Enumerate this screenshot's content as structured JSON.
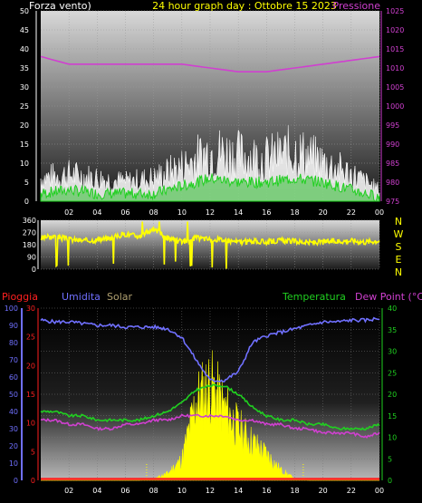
{
  "colors": {
    "background": "#000000",
    "wind": "#ffffff",
    "pressure": "#d040d0",
    "direction": "#ffff00",
    "rain": "#ff2020",
    "humidity": "#7070ff",
    "solar": "#ffff00",
    "temperature": "#20d020",
    "dewpoint": "#d040d0",
    "header_title": "#ffff00",
    "grid": "#888888"
  },
  "chart_data": [
    {
      "type": "line",
      "panel": "wind-pressure",
      "title": "24 hour graph day : Ottobre 15 2023",
      "left_label": "Forza vento)",
      "right_label": "Pressione",
      "x_ticks": [
        "02",
        "04",
        "06",
        "08",
        "10",
        "12",
        "14",
        "16",
        "18",
        "20",
        "22",
        "00"
      ],
      "y_left_ticks": [
        0,
        5,
        10,
        15,
        20,
        25,
        30,
        35,
        40,
        45,
        50
      ],
      "y_right_ticks": [
        975,
        980,
        985,
        990,
        995,
        1000,
        1005,
        1010,
        1015,
        1020,
        1025
      ],
      "ylim_left": [
        0,
        50
      ],
      "ylim_right": [
        975,
        1025
      ],
      "x_hours": [
        0,
        2,
        4,
        6,
        8,
        10,
        12,
        14,
        16,
        18,
        20,
        22,
        24
      ],
      "gust_kmh": [
        6,
        7,
        6,
        5,
        6,
        9,
        13,
        12,
        11,
        13,
        10,
        7,
        3
      ],
      "wind_kmh": [
        2,
        3,
        2,
        2,
        2,
        4,
        6,
        5,
        5,
        6,
        5,
        3,
        1
      ],
      "pressure_hpa": [
        1013,
        1011,
        1011,
        1011,
        1011,
        1011,
        1010,
        1009,
        1009,
        1010,
        1011,
        1012,
        1013
      ]
    },
    {
      "type": "line",
      "panel": "wind-direction",
      "y_left_ticks": [
        0,
        90,
        180,
        270,
        360
      ],
      "right_labels": [
        "N",
        "W",
        "S",
        "E",
        "N"
      ],
      "ylim": [
        0,
        360
      ],
      "x_hours": [
        0,
        1,
        2,
        3,
        4,
        5,
        6,
        7,
        8,
        9,
        10,
        11,
        12,
        13,
        14,
        15,
        16,
        17,
        18,
        19,
        20,
        21,
        22,
        23,
        24
      ],
      "direction_deg": [
        230,
        240,
        220,
        210,
        215,
        230,
        260,
        240,
        300,
        230,
        200,
        230,
        220,
        215,
        200,
        205,
        200,
        210,
        205,
        195,
        200,
        205,
        210,
        200,
        210
      ]
    },
    {
      "type": "line",
      "panel": "rain-hum-solar-temp",
      "labels": {
        "rain": "Pioggia",
        "humidity": "Umidita",
        "solar": "Solar",
        "temperature": "Temperatura",
        "dewpoint": "Dew Point (°C)"
      },
      "y_humidity_ticks": [
        0,
        10,
        20,
        30,
        40,
        50,
        60,
        70,
        80,
        90,
        100
      ],
      "y_rain_ticks": [
        0,
        5,
        10,
        15,
        20,
        25,
        30
      ],
      "y_temp_ticks": [
        0,
        5,
        10,
        15,
        20,
        25,
        30,
        35,
        40
      ],
      "ylim_humidity": [
        0,
        100
      ],
      "ylim_rain": [
        0,
        30
      ],
      "ylim_temp": [
        0,
        40
      ],
      "x_hours": [
        0,
        1,
        2,
        3,
        4,
        5,
        6,
        7,
        8,
        9,
        10,
        11,
        12,
        13,
        14,
        15,
        16,
        17,
        18,
        19,
        20,
        21,
        22,
        23,
        24
      ],
      "humidity_pct": [
        93,
        92,
        92,
        91,
        90,
        90,
        89,
        89,
        89,
        88,
        83,
        70,
        58,
        58,
        63,
        80,
        84,
        86,
        88,
        90,
        92,
        92,
        93,
        93,
        94
      ],
      "temperature_c": [
        16,
        16,
        15,
        15,
        14,
        14,
        14,
        14,
        15,
        16,
        18,
        21,
        22,
        22,
        20,
        17,
        15,
        14,
        14,
        13,
        13,
        12,
        12,
        12,
        13
      ],
      "dewpoint_c": [
        14,
        14,
        13,
        13,
        12,
        12,
        13,
        13,
        14,
        14,
        15,
        15,
        15,
        15,
        14,
        14,
        13,
        13,
        12,
        12,
        11,
        11,
        11,
        10,
        11
      ],
      "solar_pct": [
        0,
        0,
        0,
        0,
        0,
        0,
        0,
        0,
        1,
        4,
        12,
        45,
        55,
        42,
        30,
        22,
        15,
        6,
        1,
        0,
        0,
        0,
        0,
        0,
        0
      ],
      "rain_mm": [
        0,
        0,
        0,
        0,
        0,
        0,
        0,
        0,
        0,
        0,
        0,
        0,
        0,
        0,
        0,
        0,
        0,
        0,
        0,
        0,
        0,
        0,
        0,
        0,
        0
      ]
    }
  ]
}
